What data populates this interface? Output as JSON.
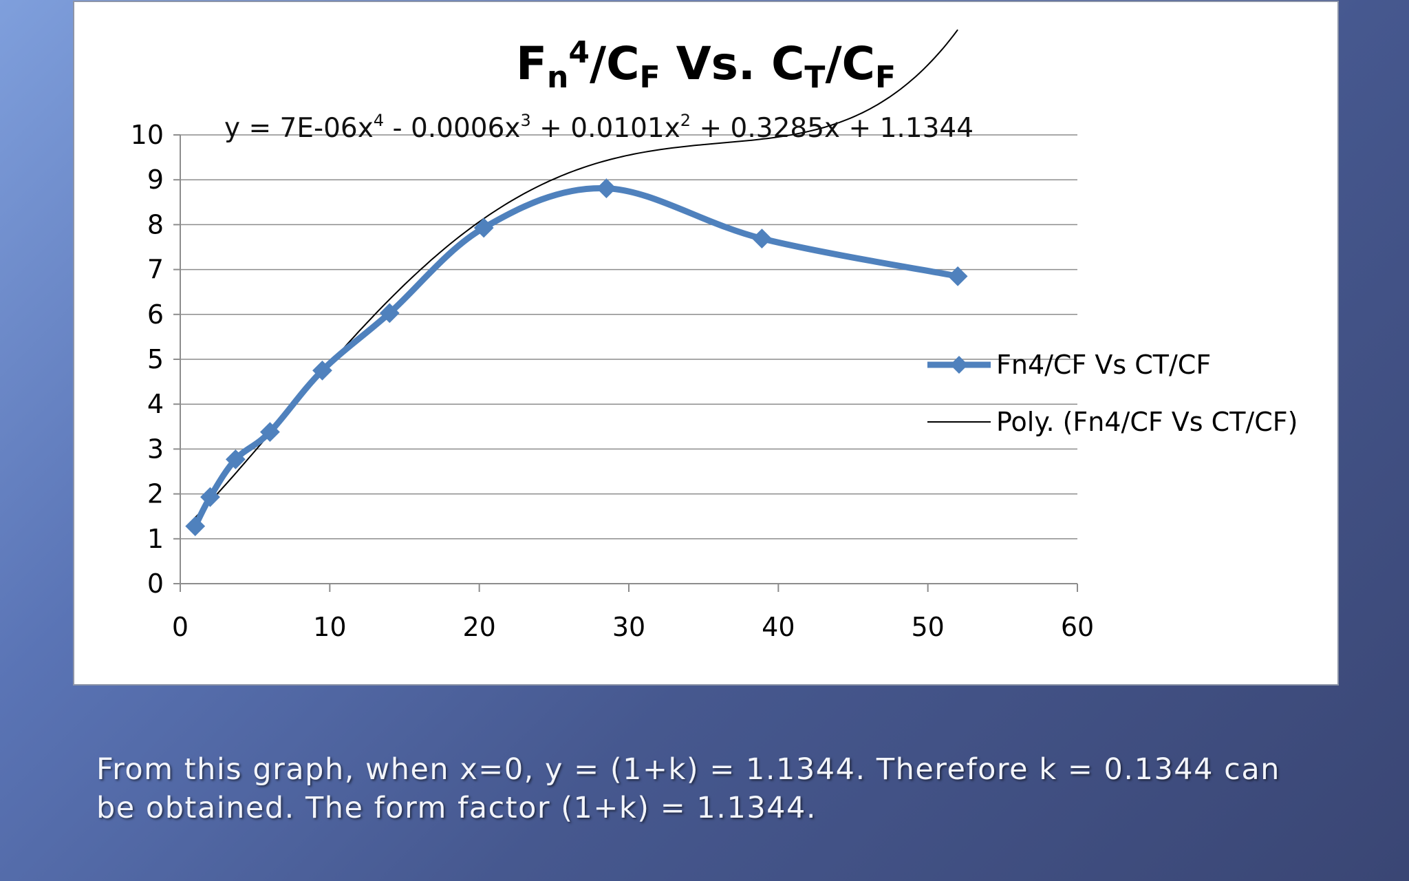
{
  "chart_data": {
    "type": "line",
    "title": {
      "base1": "F",
      "sub1": "n",
      "sup1": "4",
      "slash1": "/",
      "base2": "C",
      "sub2": "F",
      "mid": " Vs. ",
      "base3": "C",
      "sub3": "T",
      "slash2": "/",
      "base4": "C",
      "sub4": "F"
    },
    "xlim": [
      0,
      60
    ],
    "ylim": [
      0,
      10
    ],
    "x_ticks": [
      0,
      10,
      20,
      30,
      40,
      50,
      60
    ],
    "y_ticks": [
      0,
      1,
      2,
      3,
      4,
      5,
      6,
      7,
      8,
      9,
      10
    ],
    "grid": "horizontal",
    "legend_position": "right",
    "series": [
      {
        "name": "Fn4/CF Vs CT/CF",
        "color": "#4f81bd",
        "marker": "diamond",
        "x": [
          1.0,
          2.0,
          3.7,
          6.0,
          9.5,
          14.0,
          20.3,
          28.5,
          38.9,
          52.0
        ],
        "y": [
          1.28,
          1.93,
          2.77,
          3.38,
          4.75,
          6.03,
          7.93,
          8.81,
          7.69,
          6.85
        ]
      },
      {
        "name": "Poly. (Fn4/CF Vs CT/CF)",
        "color": "#000000",
        "type": "polynomial-trendline",
        "coefficients": [
          1.1344,
          0.3285,
          0.0101,
          -0.0006,
          7e-06
        ]
      }
    ],
    "annotations": [
      {
        "eq_a": "y = 7E-06x",
        "eq_a_sup": "4",
        "eq_b": " - 0.0006x",
        "eq_b_sup": "3",
        "eq_c": " + 0.0101x",
        "eq_c_sup": "2",
        "eq_d": " + 0.3285x + 1.1344"
      }
    ]
  },
  "caption": {
    "text": "From this graph, when x=0, y = (1+k) = 1.1344. Therefore k = 0.1344 can be obtained. The form factor (1+k) = 1.1344."
  }
}
